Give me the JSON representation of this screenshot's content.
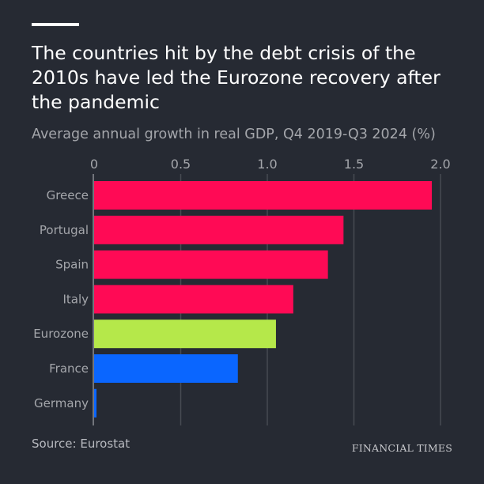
{
  "title": "The countries hit by the debt crisis of the 2010s have led the Eurozone recovery after the pandemic",
  "subtitle": "Average annual growth in real GDP, Q4 2019-Q3 2024 (%)",
  "source": "Source: Eurostat",
  "logo": "FINANCIAL TIMES",
  "chart_data": {
    "type": "bar",
    "orientation": "horizontal",
    "title": "The countries hit by the debt crisis of the 2010s have led the Eurozone recovery after the pandemic",
    "subtitle": "Average annual growth in real GDP, Q4 2019-Q3 2024 (%)",
    "categories": [
      "Greece",
      "Portugal",
      "Spain",
      "Italy",
      "Eurozone",
      "France",
      "Germany"
    ],
    "values": [
      1.95,
      1.44,
      1.35,
      1.15,
      1.05,
      0.83,
      0.01
    ],
    "colors": [
      "#ff0a55",
      "#ff0a55",
      "#ff0a55",
      "#ff0a55",
      "#b5e84a",
      "#0a66ff",
      "#0a66ff"
    ],
    "xlim": [
      0,
      2.0
    ],
    "xticks": [
      0,
      0.5,
      1.0,
      1.5,
      2.0
    ],
    "xtick_labels": [
      "0",
      "0.5",
      "1.0",
      "1.5",
      "2.0"
    ],
    "axis_position": "top",
    "grid": true
  }
}
